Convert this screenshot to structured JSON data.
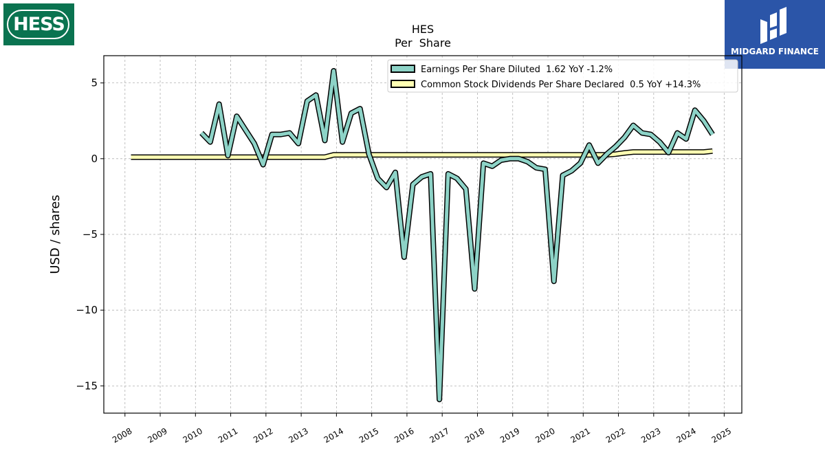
{
  "logos": {
    "left": {
      "text": "HESS",
      "color": "#0a7350"
    },
    "right": {
      "text": "MIDGARD FINANCE",
      "color": "#2b55a8"
    }
  },
  "chart_data": {
    "type": "line",
    "title": "HES",
    "subtitle": "Per  Share",
    "xlabel": "",
    "ylabel": "USD / shares",
    "xlim": [
      2007.4,
      2025.5
    ],
    "ylim": [
      -16.8,
      6.8
    ],
    "x_ticks": [
      "2008",
      "2009",
      "2010",
      "2011",
      "2012",
      "2013",
      "2014",
      "2015",
      "2016",
      "2017",
      "2018",
      "2019",
      "2020",
      "2021",
      "2022",
      "2023",
      "2024",
      "2025"
    ],
    "y_ticks": [
      5,
      0,
      -5,
      -10,
      -15
    ],
    "y_tick_labels": [
      "5",
      "0",
      "−5",
      "−10",
      "−15"
    ],
    "grid": true,
    "legend_position": "top-right",
    "series": [
      {
        "name": "Earnings Per Share Diluted  1.62 YoY -1.2%",
        "color": "#8dd3c7",
        "points": [
          [
            2010.17,
            1.7
          ],
          [
            2010.42,
            1.1
          ],
          [
            2010.67,
            3.6
          ],
          [
            2010.92,
            0.2
          ],
          [
            2011.17,
            2.8
          ],
          [
            2011.42,
            1.9
          ],
          [
            2011.67,
            1.0
          ],
          [
            2011.92,
            -0.4
          ],
          [
            2012.17,
            1.6
          ],
          [
            2012.42,
            1.6
          ],
          [
            2012.67,
            1.7
          ],
          [
            2012.92,
            1.0
          ],
          [
            2013.17,
            3.8
          ],
          [
            2013.42,
            4.2
          ],
          [
            2013.67,
            1.2
          ],
          [
            2013.92,
            5.8
          ],
          [
            2014.17,
            1.1
          ],
          [
            2014.42,
            3.0
          ],
          [
            2014.67,
            3.3
          ],
          [
            2014.92,
            0.3
          ],
          [
            2015.17,
            -1.3
          ],
          [
            2015.42,
            -1.9
          ],
          [
            2015.67,
            -0.9
          ],
          [
            2015.92,
            -6.5
          ],
          [
            2016.17,
            -1.7
          ],
          [
            2016.42,
            -1.2
          ],
          [
            2016.67,
            -1.0
          ],
          [
            2016.92,
            -15.9
          ],
          [
            2017.17,
            -1.0
          ],
          [
            2017.42,
            -1.3
          ],
          [
            2017.67,
            -2.0
          ],
          [
            2017.92,
            -8.6
          ],
          [
            2018.17,
            -0.3
          ],
          [
            2018.42,
            -0.5
          ],
          [
            2018.67,
            -0.1
          ],
          [
            2018.92,
            0.0
          ],
          [
            2019.17,
            0.0
          ],
          [
            2019.42,
            -0.2
          ],
          [
            2019.67,
            -0.6
          ],
          [
            2019.92,
            -0.7
          ],
          [
            2020.17,
            -8.1
          ],
          [
            2020.42,
            -1.1
          ],
          [
            2020.67,
            -0.8
          ],
          [
            2020.92,
            -0.3
          ],
          [
            2021.17,
            0.9
          ],
          [
            2021.42,
            -0.3
          ],
          [
            2021.67,
            0.3
          ],
          [
            2021.92,
            0.8
          ],
          [
            2022.17,
            1.4
          ],
          [
            2022.42,
            2.2
          ],
          [
            2022.67,
            1.7
          ],
          [
            2022.92,
            1.6
          ],
          [
            2023.17,
            1.1
          ],
          [
            2023.42,
            0.4
          ],
          [
            2023.67,
            1.7
          ],
          [
            2023.92,
            1.3
          ],
          [
            2024.17,
            3.2
          ],
          [
            2024.42,
            2.5
          ],
          [
            2024.67,
            1.6
          ]
        ]
      },
      {
        "name": "Common Stock Dividends Per Share Declared  0.5 YoY +14.3%",
        "color": "#ffffb3",
        "points": [
          [
            2008.17,
            0.1
          ],
          [
            2013.67,
            0.1
          ],
          [
            2013.92,
            0.25
          ],
          [
            2021.67,
            0.25
          ],
          [
            2021.92,
            0.3
          ],
          [
            2022.17,
            0.38
          ],
          [
            2022.42,
            0.44
          ],
          [
            2022.92,
            0.44
          ],
          [
            2023.17,
            0.44
          ],
          [
            2023.42,
            0.44
          ],
          [
            2024.42,
            0.44
          ],
          [
            2024.67,
            0.5
          ]
        ]
      }
    ]
  }
}
